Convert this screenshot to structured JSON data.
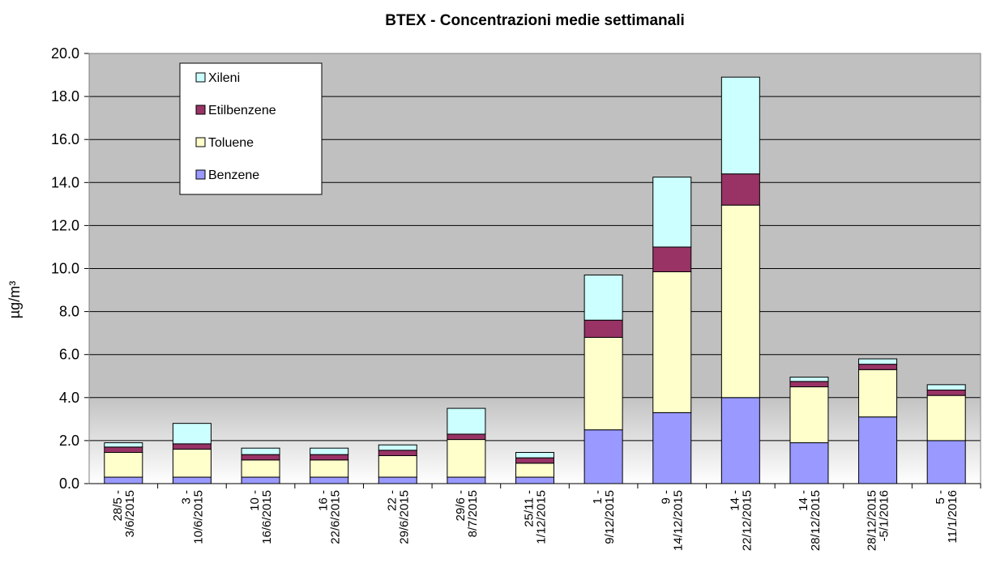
{
  "chart_data": {
    "type": "stacked_bar",
    "title": "BTEX - Concentrazioni medie settimanali",
    "y_label": "µg/m³",
    "categories": [
      "28/5 -\n3/6/2015",
      "3 -\n10/6/2015",
      "10 -\n16/6/2015",
      "16 -\n22/6/2015",
      "22 -\n29/6/2015",
      "29/6 -\n8/7/2015",
      "25/11 -\n1/12/2015",
      "1 -\n9/12/2015",
      "9 -\n14/12/2015",
      "14 -\n22/12/2015",
      "14 -\n28/12/2015",
      "28/12/2015\n-5/1/2016",
      "5 -\n11/1/2016"
    ],
    "series": [
      {
        "name": "Benzene",
        "color": "#9999ff",
        "values": [
          0.3,
          0.3,
          0.3,
          0.3,
          0.3,
          0.3,
          0.3,
          2.5,
          3.3,
          4.0,
          1.9,
          3.1,
          2.0
        ]
      },
      {
        "name": "Toluene",
        "color": "#ffffcc",
        "values": [
          1.15,
          1.3,
          0.8,
          0.8,
          1.0,
          1.75,
          0.65,
          4.3,
          6.55,
          8.95,
          2.6,
          2.2,
          2.1
        ]
      },
      {
        "name": "Etilbenzene",
        "color": "#993366",
        "values": [
          0.25,
          0.25,
          0.25,
          0.25,
          0.25,
          0.25,
          0.25,
          0.8,
          1.15,
          1.45,
          0.25,
          0.25,
          0.25
        ]
      },
      {
        "name": "Xileni",
        "color": "#ccffff",
        "values": [
          0.2,
          0.95,
          0.3,
          0.3,
          0.25,
          1.2,
          0.25,
          2.1,
          3.25,
          4.5,
          0.2,
          0.25,
          0.25
        ]
      }
    ],
    "ylim": [
      0,
      20
    ],
    "yticks": [
      {
        "value": 0,
        "label": "0.0"
      },
      {
        "value": 2,
        "label": "2.0"
      },
      {
        "value": 4,
        "label": "4.0"
      },
      {
        "value": 6,
        "label": "6.0"
      },
      {
        "value": 8,
        "label": "8.0"
      },
      {
        "value": 10,
        "label": "10.0"
      },
      {
        "value": 12,
        "label": "12.0"
      },
      {
        "value": 14,
        "label": "14.0"
      },
      {
        "value": 16,
        "label": "16.0"
      },
      {
        "value": 18,
        "label": "18.0"
      },
      {
        "value": 20,
        "label": "20.0"
      }
    ],
    "grid": true,
    "legend": "upper-left"
  }
}
